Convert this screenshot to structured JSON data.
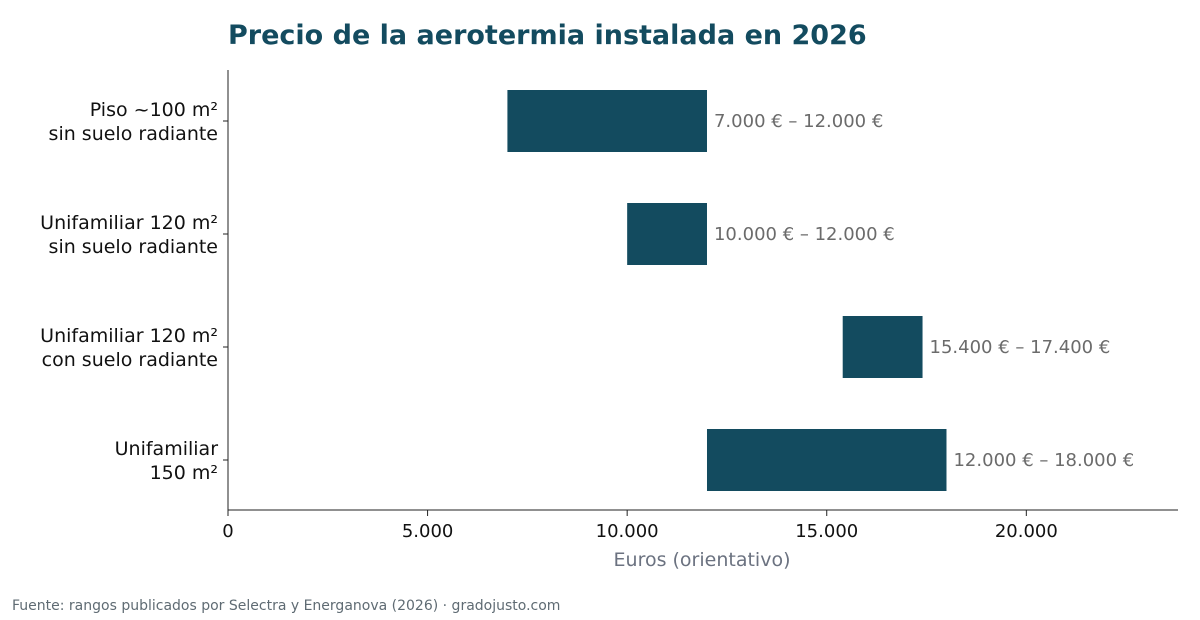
{
  "chart_data": {
    "type": "bar",
    "orientation": "horizontal",
    "subtype": "range",
    "title": "Precio de la aerotermia instalada en 2026",
    "xlabel": "Euros (orientativo)",
    "ylabel": "",
    "xlim": [
      0,
      23800
    ],
    "xticks": [
      0,
      5000,
      10000,
      15000,
      20000
    ],
    "xtick_labels": [
      "0",
      "5.000",
      "10.000",
      "15.000",
      "20.000"
    ],
    "grid": false,
    "bar_color": "#134b5f",
    "categories": [
      [
        "Piso ~100 m²",
        "sin suelo radiante"
      ],
      [
        "Unifamiliar 120 m²",
        "sin suelo radiante"
      ],
      [
        "Unifamiliar 120 m²",
        "con suelo radiante"
      ],
      [
        "Unifamiliar",
        "150 m²"
      ]
    ],
    "ranges": [
      {
        "low": 7000,
        "high": 12000,
        "label": "7.000 € – 12.000 €"
      },
      {
        "low": 10000,
        "high": 12000,
        "label": "10.000 € – 12.000 €"
      },
      {
        "low": 15400,
        "high": 17400,
        "label": "15.400 € – 17.400 €"
      },
      {
        "low": 12000,
        "high": 18000,
        "label": "12.000 € – 18.000 €"
      }
    ]
  },
  "footer": {
    "source": "Fuente: rangos publicados por Selectra y Energanova (2026)  ·  gradojusto.com"
  }
}
